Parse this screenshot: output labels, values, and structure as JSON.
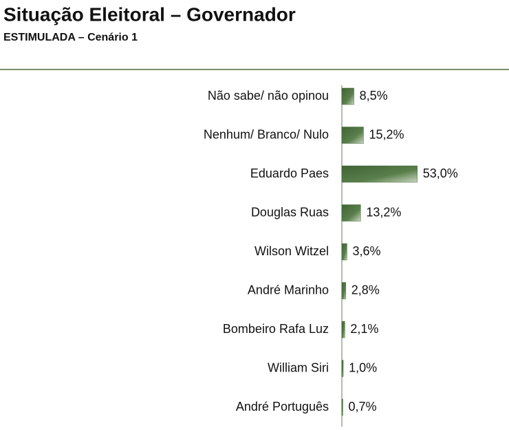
{
  "chart_data": {
    "type": "hbar",
    "title": "Situação Eleitoral – Governador",
    "subtitle": "ESTIMULADA – Cenário 1",
    "categories": [
      "Não sabe/ não opinou",
      "Nenhum/ Branco/ Nulo",
      "Eduardo Paes",
      "Douglas Ruas",
      "Wilson Witzel",
      "André Marinho",
      "Bombeiro Rafa Luz",
      "William Siri",
      "André Português"
    ],
    "values": [
      8.5,
      15.2,
      53.0,
      13.2,
      3.6,
      2.8,
      2.1,
      1.0,
      0.7
    ],
    "value_labels": [
      "8,5%",
      "15,2%",
      "53,0%",
      "13,2%",
      "3,6%",
      "2,8%",
      "2,1%",
      "1,0%",
      "0,7%"
    ],
    "color": "#4a6e3e"
  }
}
